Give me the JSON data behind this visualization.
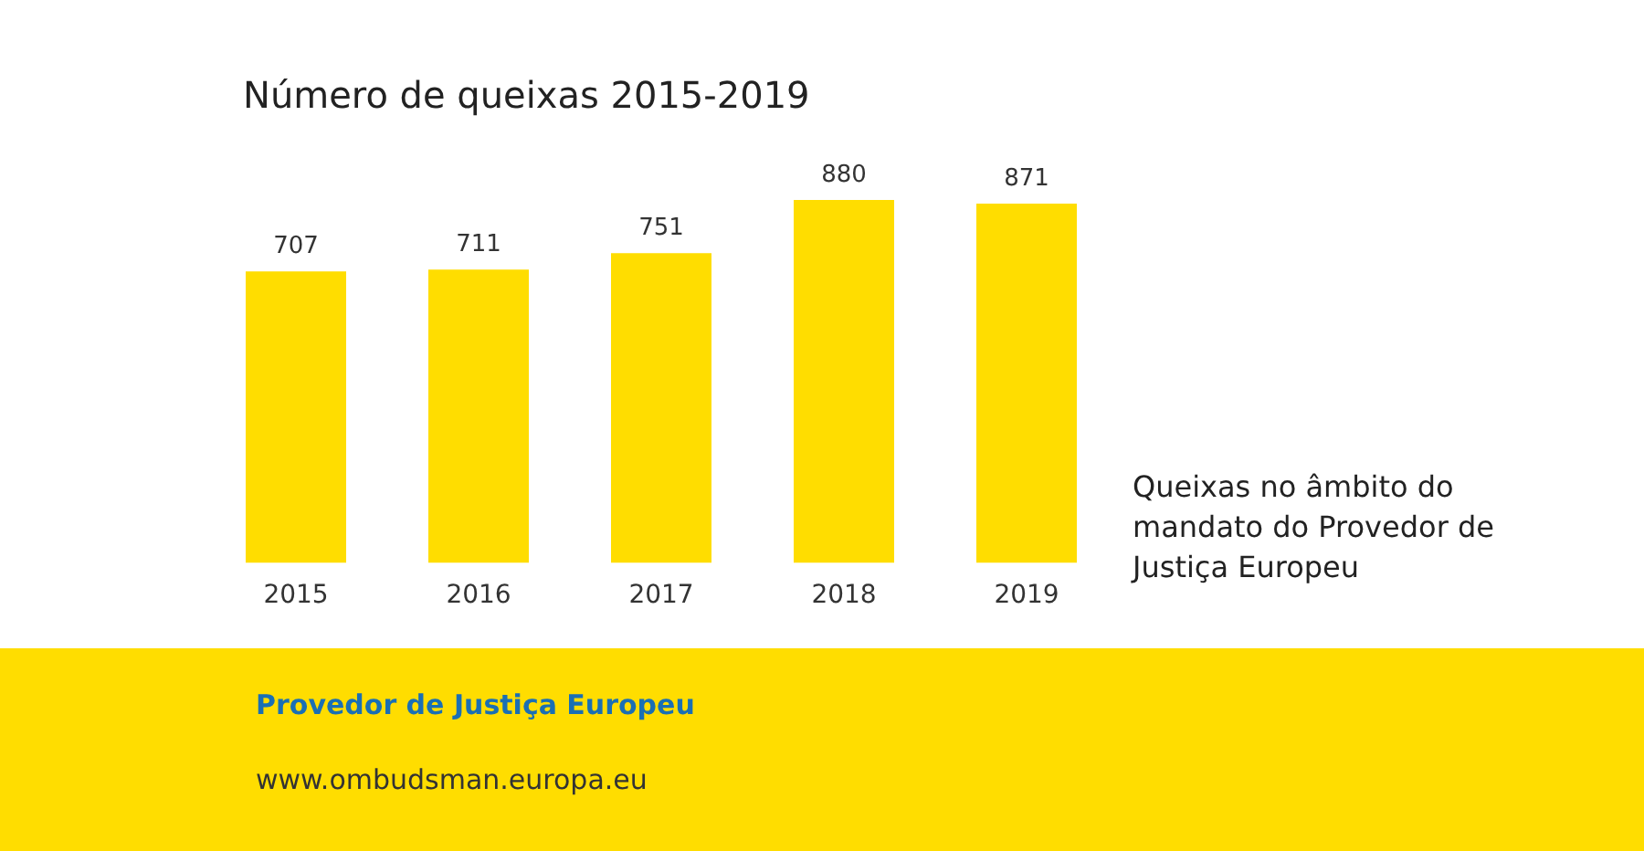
{
  "chart_data": {
    "type": "bar",
    "title": "Número de queixas 2015-2019",
    "categories": [
      "2015",
      "2016",
      "2017",
      "2018",
      "2019"
    ],
    "values": [
      707,
      711,
      751,
      880,
      871
    ],
    "color": "#ffdd00",
    "data_labels": true,
    "grid": false,
    "legend": false,
    "tick_labels": "x",
    "annotations": [
      "Queixas no âmbito do mandato do Provedor de Justiça Europeu",
      "Provedor de Justiça Europeu",
      "www.ombudsman.europa.eu"
    ]
  }
}
